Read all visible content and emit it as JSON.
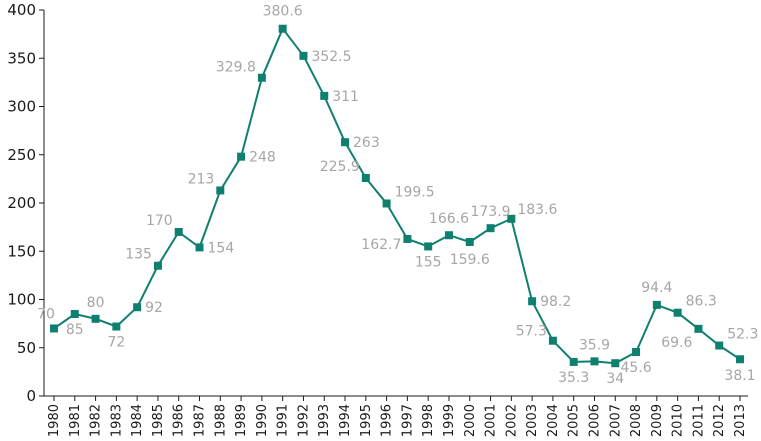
{
  "chart_data": {
    "type": "line",
    "title": "",
    "xlabel": "",
    "ylabel": "",
    "x": [
      "1980",
      "1981",
      "1982",
      "1983",
      "1984",
      "1985",
      "1986",
      "1987",
      "1988",
      "1989",
      "1990",
      "1991",
      "1992",
      "1993",
      "1994",
      "1995",
      "1996",
      "1997",
      "1998",
      "1999",
      "2000",
      "2001",
      "2002",
      "2003",
      "2004",
      "2005",
      "2006",
      "2007",
      "2008",
      "2009",
      "2010",
      "2011",
      "2012",
      "2013"
    ],
    "series": [
      {
        "values": [
          70,
          85,
          80,
          72,
          92,
          135,
          170,
          154,
          213,
          248,
          329.8,
          380.6,
          352.5,
          311,
          263,
          225.9,
          199.5,
          162.7,
          155,
          166.6,
          159.6,
          173.9,
          183.6,
          98.2,
          57.3,
          35.3,
          35.9,
          34,
          45.6,
          94.4,
          86.3,
          69.6,
          52.3,
          38.1
        ],
        "data_labels": [
          "70",
          "85",
          "80",
          "72",
          "92",
          "135",
          "170",
          "154",
          "213",
          "248",
          "329.8",
          "380.6",
          "352.5",
          "311",
          "263",
          "225.9",
          "199.5",
          "162.7",
          "155",
          "166.6",
          "159.6",
          "173.9",
          "183.6",
          "98.2",
          "57.3",
          "35.3",
          "35.9",
          "34",
          "45.6",
          "94.4",
          "86.3",
          "69.6",
          "52.3",
          "38.1"
        ]
      }
    ],
    "yticks": [
      "0",
      "50",
      "100",
      "150",
      "200",
      "250",
      "300",
      "350",
      "400"
    ],
    "ylim": [
      0,
      400
    ],
    "grid": false,
    "legend": "none",
    "colors": {
      "line": "#0f7f6f",
      "marker": "#0f7f6f",
      "data_label": "#a6a6a6",
      "axis": "#1a1a1a"
    }
  }
}
